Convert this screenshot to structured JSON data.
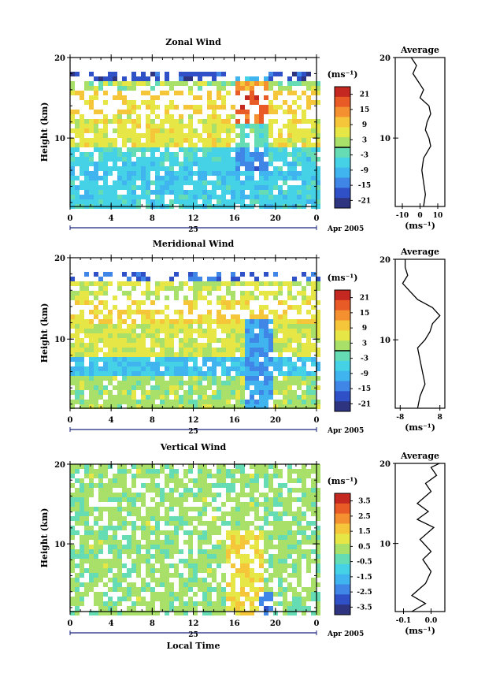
{
  "chart_data": [
    {
      "type": "heatmap",
      "title": "Zonal Wind",
      "ylabel": "Height (km)",
      "x_ticks": [
        "0",
        "4",
        "8",
        "12",
        "16",
        "20",
        "0"
      ],
      "y_ticks": [
        "10",
        "20"
      ],
      "xlim": [
        0,
        24
      ],
      "ylim": [
        1.5,
        20
      ],
      "date_label": "25",
      "month_label": "Apr 2005",
      "colorbar": {
        "unit": "(ms⁻¹)",
        "ticks": [
          "21",
          "15",
          "9",
          "3",
          "-3",
          "-9",
          "-15",
          "-21"
        ],
        "range": [
          -24,
          24
        ]
      },
      "average_profile": {
        "title": "Average",
        "xlabel": "(ms⁻¹)",
        "x_ticks": [
          "-10",
          "0",
          "10"
        ],
        "xlim": [
          -14,
          14
        ],
        "y_ticks": [
          "10",
          "20"
        ],
        "points": [
          [
            2,
            1.5
          ],
          [
            3,
            3
          ],
          [
            2,
            4.5
          ],
          [
            1,
            6
          ],
          [
            2,
            7.5
          ],
          [
            6,
            9
          ],
          [
            5,
            10
          ],
          [
            3,
            11
          ],
          [
            4,
            12
          ],
          [
            6,
            13
          ],
          [
            5,
            14
          ],
          [
            0,
            15
          ],
          [
            2,
            16
          ],
          [
            -1,
            17
          ],
          [
            -4,
            18
          ],
          [
            -2,
            19
          ],
          [
            -5,
            20
          ]
        ]
      }
    },
    {
      "type": "heatmap",
      "title": "Meridional Wind",
      "ylabel": "Height (km)",
      "x_ticks": [
        "0",
        "4",
        "8",
        "12",
        "16",
        "20",
        "0"
      ],
      "y_ticks": [
        "10",
        "20"
      ],
      "xlim": [
        0,
        24
      ],
      "ylim": [
        1.5,
        20
      ],
      "date_label": "25",
      "month_label": "Apr 2005",
      "colorbar": {
        "unit": "(ms⁻¹)",
        "ticks": [
          "21",
          "15",
          "9",
          "3",
          "-3",
          "-9",
          "-15",
          "-21"
        ],
        "range": [
          -24,
          24
        ]
      },
      "average_profile": {
        "title": "Average",
        "xlabel": "(ms⁻¹)",
        "x_ticks": [
          "-8",
          "8"
        ],
        "xlim": [
          -10,
          10
        ],
        "y_ticks": [
          "10",
          "20"
        ],
        "points": [
          [
            -1,
            1.5
          ],
          [
            0,
            3
          ],
          [
            2,
            4.5
          ],
          [
            1,
            6
          ],
          [
            0,
            7.5
          ],
          [
            -1,
            9
          ],
          [
            2,
            10
          ],
          [
            4,
            11
          ],
          [
            5,
            12
          ],
          [
            8,
            13
          ],
          [
            5,
            14
          ],
          [
            -1,
            15
          ],
          [
            -4,
            16
          ],
          [
            -7,
            17
          ],
          [
            -5,
            18
          ],
          [
            -6,
            19
          ],
          [
            -6,
            20
          ]
        ]
      }
    },
    {
      "type": "heatmap",
      "title": "Vertical Wind",
      "ylabel": "Height (km)",
      "xlabel": "Local Time",
      "x_ticks": [
        "0",
        "4",
        "8",
        "12",
        "16",
        "20",
        "0"
      ],
      "y_ticks": [
        "10",
        "20"
      ],
      "xlim": [
        0,
        24
      ],
      "ylim": [
        1.5,
        20
      ],
      "date_label": "25",
      "month_label": "Apr 2005",
      "colorbar": {
        "unit": "(ms⁻¹)",
        "ticks": [
          "3.5",
          "2.5",
          "1.5",
          "0.5",
          "-0.5",
          "-1.5",
          "-2.5",
          "-3.5"
        ],
        "range": [
          -4,
          4
        ]
      },
      "average_profile": {
        "title": "Average",
        "xlabel": "(ms⁻¹)",
        "x_ticks": [
          "-0.1",
          "0.0"
        ],
        "xlim": [
          -0.13,
          0.05
        ],
        "y_ticks": [
          "10",
          "20"
        ],
        "points": [
          [
            -0.07,
            1.5
          ],
          [
            -0.02,
            2.5
          ],
          [
            -0.07,
            3.5
          ],
          [
            -0.02,
            5
          ],
          [
            0.0,
            6.5
          ],
          [
            -0.03,
            8
          ],
          [
            0.0,
            9
          ],
          [
            -0.04,
            10.5
          ],
          [
            0.01,
            12
          ],
          [
            -0.05,
            13
          ],
          [
            -0.01,
            14
          ],
          [
            -0.05,
            15
          ],
          [
            0.0,
            16.5
          ],
          [
            -0.02,
            17.5
          ],
          [
            0.02,
            18.5
          ],
          [
            0.0,
            19.5
          ],
          [
            0.03,
            20
          ]
        ]
      }
    }
  ]
}
